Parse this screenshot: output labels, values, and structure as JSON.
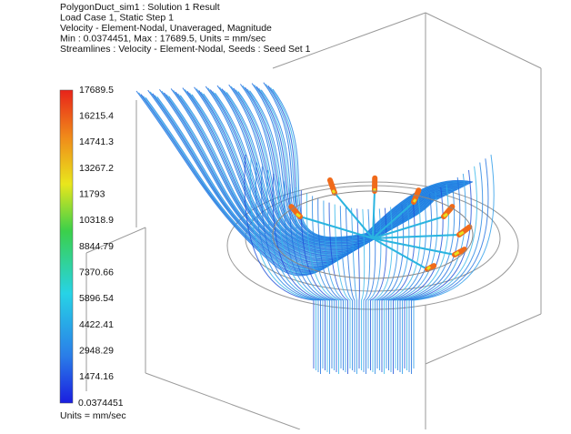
{
  "header": {
    "lines": [
      "PolygonDuct_sim1 : Solution 1 Result",
      "Load Case 1, Static Step 1",
      "Velocity - Element-Nodal, Unaveraged, Magnitude",
      "Min : 0.0374451, Max : 17689.5, Units = mm/sec",
      "Streamlines : Velocity - Element-Nodal, Seeds : Seed Set 1"
    ]
  },
  "legend": {
    "ticks": [
      "17689.5",
      "16215.4",
      "14741.3",
      "13267.2",
      "11793",
      "10318.9",
      "8844.79",
      "7370.66",
      "5896.54",
      "4422.41",
      "2948.29",
      "1474.16",
      "0.0374451"
    ],
    "units": "Units = mm/sec"
  }
}
